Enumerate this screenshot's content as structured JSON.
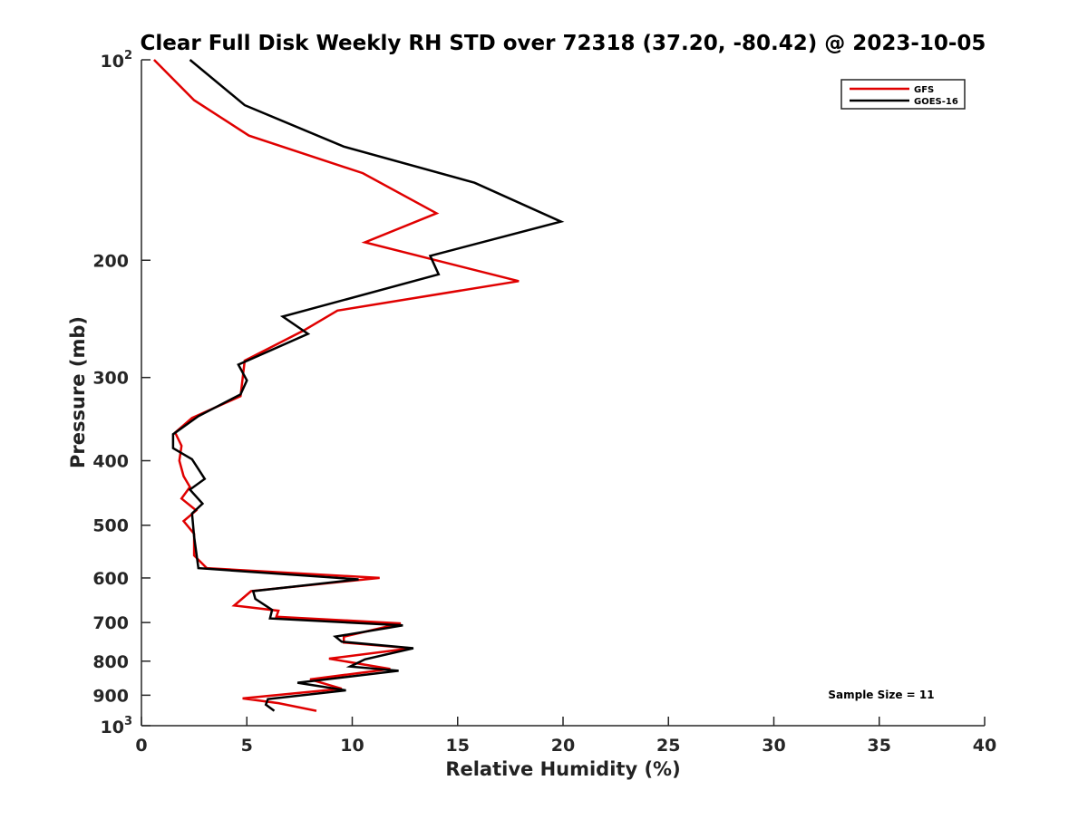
{
  "chart_data": {
    "type": "line",
    "title": "Clear Full Disk Weekly RH STD over 72318 (37.20, -80.42) @ 2023-10-05",
    "xlabel": "Relative Humidity (%)",
    "ylabel": "Pressure (mb)",
    "xlim": [
      0,
      40
    ],
    "ylim": [
      100,
      1000
    ],
    "y_scale": "log",
    "y_reversed": true,
    "grid": false,
    "legend_position": "top-right",
    "x_ticks": [
      0,
      5,
      10,
      15,
      20,
      25,
      30,
      35,
      40
    ],
    "y_ticks": [
      {
        "value": 100,
        "base": "10",
        "exp": "2"
      },
      {
        "value": 200,
        "label": "200"
      },
      {
        "value": 300,
        "label": "300"
      },
      {
        "value": 400,
        "label": "400"
      },
      {
        "value": 500,
        "label": "500"
      },
      {
        "value": 600,
        "label": "600"
      },
      {
        "value": 700,
        "label": "700"
      },
      {
        "value": 800,
        "label": "800"
      },
      {
        "value": 900,
        "label": "900"
      },
      {
        "value": 1000,
        "base": "10",
        "exp": "3"
      }
    ],
    "annotation": "Sample Size = 11",
    "series": [
      {
        "name": "GFS",
        "color": "#e00000",
        "points": [
          [
            0.6,
            100
          ],
          [
            2.5,
            115
          ],
          [
            5.1,
            130
          ],
          [
            10.5,
            148
          ],
          [
            14.0,
            170
          ],
          [
            10.6,
            188
          ],
          [
            17.9,
            215
          ],
          [
            9.3,
            238
          ],
          [
            7.7,
            255
          ],
          [
            4.9,
            283
          ],
          [
            4.7,
            320
          ],
          [
            2.4,
            345
          ],
          [
            1.6,
            363
          ],
          [
            1.9,
            380
          ],
          [
            1.8,
            400
          ],
          [
            2.0,
            422
          ],
          [
            2.3,
            438
          ],
          [
            1.9,
            456
          ],
          [
            2.6,
            475
          ],
          [
            2.0,
            493
          ],
          [
            2.5,
            515
          ],
          [
            2.5,
            555
          ],
          [
            3.1,
            580
          ],
          [
            11.3,
            600
          ],
          [
            5.2,
            628
          ],
          [
            4.4,
            660
          ],
          [
            6.5,
            672
          ],
          [
            6.4,
            686
          ],
          [
            12.3,
            702
          ],
          [
            9.6,
            735
          ],
          [
            9.6,
            750
          ],
          [
            12.8,
            765
          ],
          [
            8.9,
            793
          ],
          [
            11.8,
            822
          ],
          [
            8.0,
            852
          ],
          [
            9.5,
            880
          ],
          [
            4.8,
            910
          ],
          [
            6.5,
            925
          ],
          [
            8.3,
            950
          ]
        ]
      },
      {
        "name": "GOES-16",
        "color": "#000000",
        "points": [
          [
            2.3,
            100
          ],
          [
            4.9,
            117
          ],
          [
            9.6,
            135
          ],
          [
            15.8,
            153
          ],
          [
            19.9,
            175
          ],
          [
            13.7,
            197
          ],
          [
            14.1,
            210
          ],
          [
            6.7,
            243
          ],
          [
            7.9,
            258
          ],
          [
            4.6,
            287
          ],
          [
            5.0,
            303
          ],
          [
            4.7,
            318
          ],
          [
            2.7,
            343
          ],
          [
            1.5,
            365
          ],
          [
            1.5,
            383
          ],
          [
            2.4,
            398
          ],
          [
            3.0,
            426
          ],
          [
            2.3,
            442
          ],
          [
            2.9,
            464
          ],
          [
            2.4,
            480
          ],
          [
            2.5,
            520
          ],
          [
            2.7,
            580
          ],
          [
            10.3,
            603
          ],
          [
            5.3,
            628
          ],
          [
            5.4,
            645
          ],
          [
            6.2,
            670
          ],
          [
            6.1,
            690
          ],
          [
            12.4,
            707
          ],
          [
            9.2,
            735
          ],
          [
            9.5,
            748
          ],
          [
            12.9,
            765
          ],
          [
            10.6,
            795
          ],
          [
            9.9,
            815
          ],
          [
            12.2,
            827
          ],
          [
            7.4,
            862
          ],
          [
            9.7,
            885
          ],
          [
            6.0,
            912
          ],
          [
            5.9,
            930
          ],
          [
            6.3,
            950
          ]
        ]
      }
    ]
  }
}
